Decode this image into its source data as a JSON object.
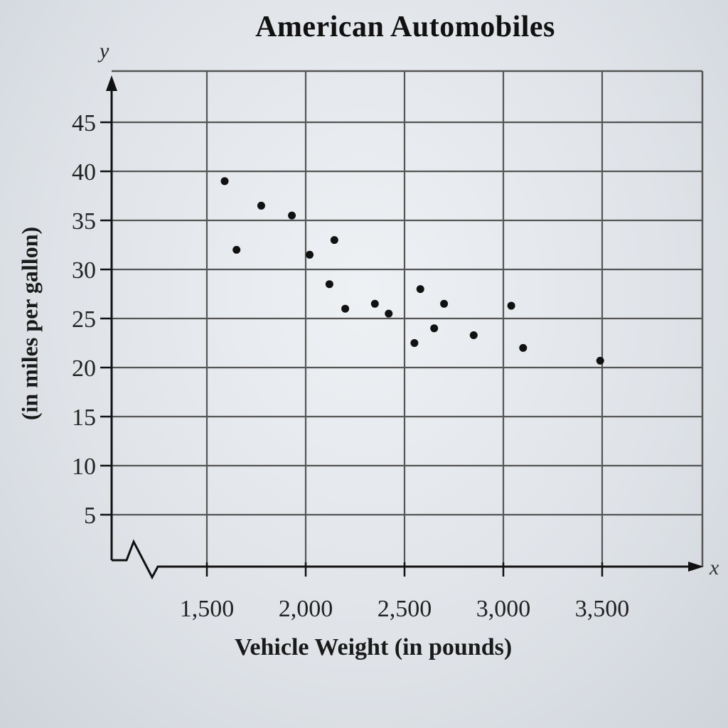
{
  "chart_data": {
    "type": "scatter",
    "title": "American Automobiles",
    "xlabel": "Vehicle Weight (in pounds)",
    "ylabel": "(in miles per gallon)",
    "x_axis_letter": "x",
    "y_axis_letter": "y",
    "xlim": [
      1050,
      4000
    ],
    "ylim": [
      0,
      50
    ],
    "x_ticks": [
      1500,
      2000,
      2500,
      3000,
      3500
    ],
    "x_tick_labels": [
      "1,500",
      "2,000",
      "2,500",
      "3,000",
      "3,500"
    ],
    "y_ticks": [
      5,
      10,
      15,
      20,
      25,
      30,
      35,
      40,
      45
    ],
    "y_tick_labels": [
      "5",
      "10",
      "15",
      "20",
      "25",
      "30",
      "35",
      "40",
      "45"
    ],
    "grid": true,
    "axis_break": "x-axis break near origin",
    "legend": null,
    "points": [
      {
        "x": 1590,
        "y": 39
      },
      {
        "x": 1650,
        "y": 32
      },
      {
        "x": 1775,
        "y": 36.5
      },
      {
        "x": 1930,
        "y": 35.5
      },
      {
        "x": 2020,
        "y": 31.5
      },
      {
        "x": 2120,
        "y": 28.5
      },
      {
        "x": 2145,
        "y": 33
      },
      {
        "x": 2200,
        "y": 26
      },
      {
        "x": 2350,
        "y": 26.5
      },
      {
        "x": 2420,
        "y": 25.5
      },
      {
        "x": 2550,
        "y": 22.5
      },
      {
        "x": 2580,
        "y": 28
      },
      {
        "x": 2650,
        "y": 24
      },
      {
        "x": 2700,
        "y": 26.5
      },
      {
        "x": 2850,
        "y": 23.3
      },
      {
        "x": 3040,
        "y": 26.3
      },
      {
        "x": 3100,
        "y": 22
      },
      {
        "x": 3490,
        "y": 20.7
      }
    ],
    "colors": {
      "point": "#111111",
      "grid": "#555555",
      "axis": "#111111"
    }
  }
}
